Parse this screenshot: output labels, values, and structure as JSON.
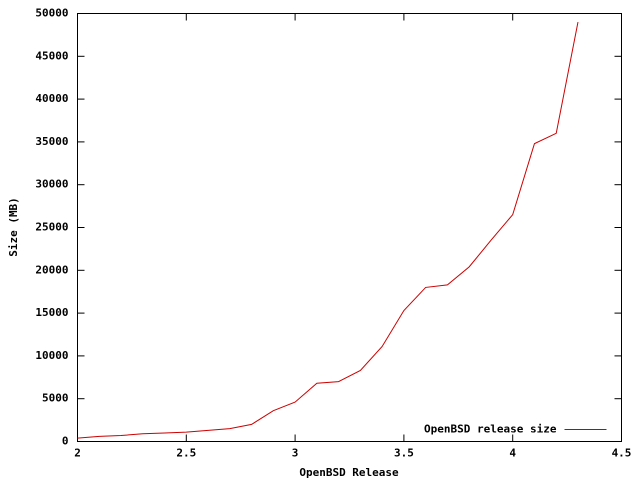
{
  "chart_data": {
    "type": "line",
    "xlabel": "OpenBSD Release",
    "ylabel": "Size (MB)",
    "x": [
      2.0,
      2.1,
      2.2,
      2.3,
      2.4,
      2.5,
      2.6,
      2.7,
      2.8,
      2.9,
      3.0,
      3.1,
      3.2,
      3.3,
      3.4,
      3.5,
      3.6,
      3.7,
      3.8,
      3.9,
      4.0,
      4.1,
      4.2,
      4.3
    ],
    "series": [
      {
        "name": "OpenBSD release size",
        "color": "#cc0000",
        "values": [
          400,
          600,
          700,
          900,
          1000,
          1100,
          1300,
          1500,
          2000,
          3600,
          4600,
          6800,
          7000,
          8300,
          11100,
          15300,
          18000,
          18300,
          20400,
          23500,
          26500,
          34800,
          36000,
          49000
        ]
      }
    ],
    "xlim": [
      2,
      4.5
    ],
    "xticks": [
      2,
      2.5,
      3,
      3.5,
      4,
      4.5
    ],
    "ylim": [
      0,
      50000
    ],
    "yticks": [
      0,
      5000,
      10000,
      15000,
      20000,
      25000,
      30000,
      35000,
      40000,
      45000,
      50000
    ],
    "legend": "lower right",
    "grid": false
  }
}
